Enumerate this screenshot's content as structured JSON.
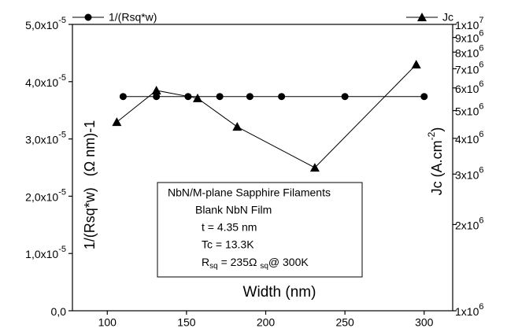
{
  "chart_data": {
    "type": "line",
    "x_label": "Width (nm)",
    "y_label": [
      "1/(Rsq*w)",
      "(Ω nm)-1"
    ],
    "y2_label": {
      "text": "Jc (A.cm",
      "sup": "-2",
      "tail": ")"
    },
    "xlim": [
      78,
      318
    ],
    "xticks": [
      100,
      150,
      200,
      250,
      300
    ],
    "ylim": [
      0,
      5e-05
    ],
    "yticks": [
      {
        "value": 0,
        "label": "0,0"
      },
      {
        "value": 1e-05,
        "label": "1,0x10",
        "sup": "-5"
      },
      {
        "value": 2e-05,
        "label": "2,0x10",
        "sup": "-5"
      },
      {
        "value": 3e-05,
        "label": "3,0x10",
        "sup": "-5"
      },
      {
        "value": 4e-05,
        "label": "4,0x10",
        "sup": "-5"
      },
      {
        "value": 5e-05,
        "label": "5,0x10",
        "sup": "-5"
      }
    ],
    "y2scale": "log",
    "y2lim": [
      1000000,
      10000000
    ],
    "y2ticks": [
      {
        "value": 1000000,
        "label": "1x10",
        "sup": "6"
      },
      {
        "value": 2000000,
        "label": "2x10",
        "sup": "6"
      },
      {
        "value": 3000000,
        "label": "3x10",
        "sup": "6"
      },
      {
        "value": 4000000,
        "label": "4x10",
        "sup": "6"
      },
      {
        "value": 5000000,
        "label": "5x10",
        "sup": "6"
      },
      {
        "value": 6000000,
        "label": "6x10",
        "sup": "6"
      },
      {
        "value": 7000000,
        "label": "7x10",
        "sup": "6"
      },
      {
        "value": 8000000,
        "label": "8x10",
        "sup": "6"
      },
      {
        "value": 9000000,
        "label": "9x10",
        "sup": "6"
      },
      {
        "value": 10000000,
        "label": "1x10",
        "sup": "7"
      }
    ],
    "series": [
      {
        "name": "1/(Rsq*w)",
        "color": "#000000",
        "marker": "circle",
        "x": [
          110,
          131,
          151,
          171,
          190,
          210,
          250,
          300
        ],
        "values": [
          3.74e-05,
          3.74e-05,
          3.74e-05,
          3.74e-05,
          3.74e-05,
          3.74e-05,
          3.74e-05,
          3.74e-05
        ]
      },
      {
        "name": "Jc",
        "color": "#000000",
        "marker": "triangle",
        "axis": "y2",
        "x": [
          106,
          131,
          157,
          182,
          231,
          295
        ],
        "values": [
          4560000,
          5880000,
          5520000,
          4390000,
          3160000,
          7240000
        ]
      }
    ],
    "annotation": [
      "NbN/M-plane Sapphire Filaments",
      "Blank NbN Film",
      "t = 4.35 nm",
      "Tc = 13.3K",
      [
        "R",
        "sq",
        " = 235Ω ",
        "sq",
        "@ 300K"
      ]
    ]
  }
}
